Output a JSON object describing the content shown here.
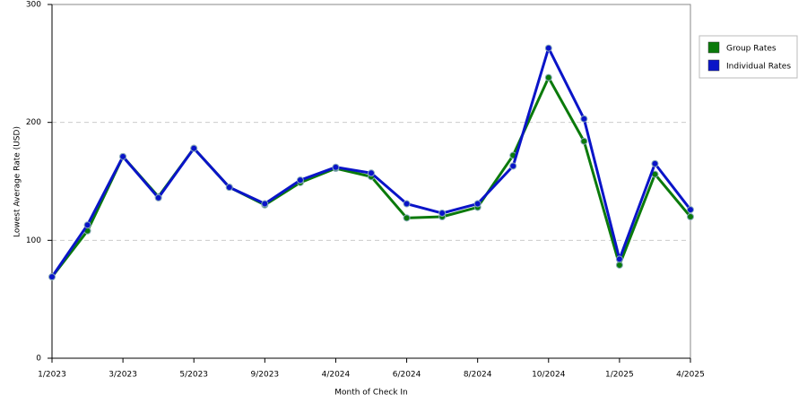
{
  "chart_data": {
    "type": "line",
    "x_label": "Month of Check In",
    "y_label": "Lowest Average Rate (USD)",
    "categories": [
      "1/2023",
      null,
      "3/2023",
      null,
      "5/2023",
      null,
      "9/2023",
      null,
      "4/2024",
      null,
      "6/2024",
      null,
      "8/2024",
      null,
      "10/2024",
      null,
      "1/2025",
      null,
      "4/2025"
    ],
    "series": [
      {
        "name": "Group Rates",
        "color": "#0b7a0b",
        "values": [
          69,
          108,
          171,
          137,
          178,
          145,
          130,
          149,
          161,
          154,
          119,
          120,
          128,
          172,
          238,
          184,
          79,
          156,
          120
        ]
      },
      {
        "name": "Individual Rates",
        "color": "#0a14c8",
        "values": [
          69,
          113,
          171,
          136,
          178,
          145,
          131,
          151,
          162,
          157,
          131,
          123,
          131,
          163,
          263,
          203,
          84,
          165,
          126
        ]
      }
    ],
    "ylim": [
      0,
      300
    ],
    "yticks": [
      0,
      100,
      200,
      300
    ],
    "grid": true,
    "legend": "right"
  }
}
